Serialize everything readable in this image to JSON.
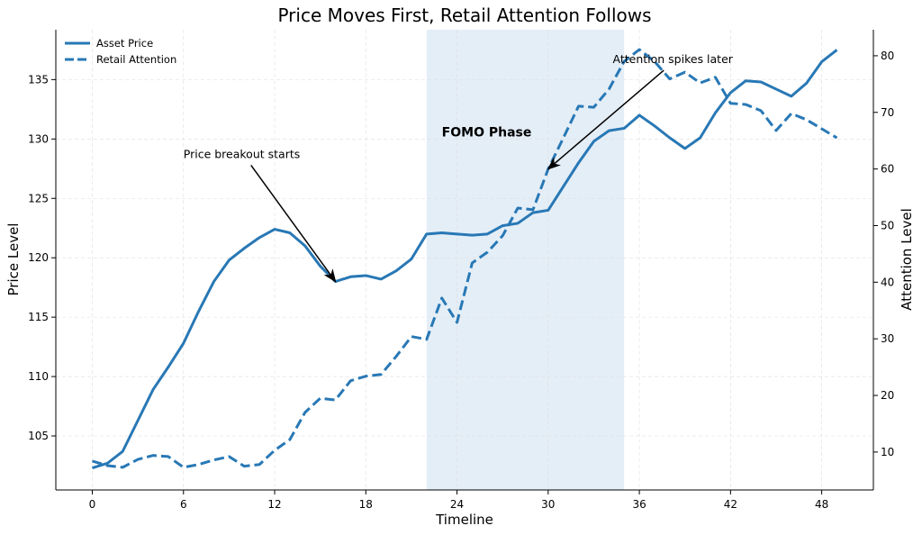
{
  "chart_data": {
    "type": "line",
    "title": "Price Moves First, Retail Attention Follows",
    "xlabel": "Timeline",
    "ylabel_left": "Price Level",
    "ylabel_right": "Attention Level",
    "xlim": [
      -2.4,
      51.4
    ],
    "ylim_left": [
      100.45,
      139.2
    ],
    "ylim_right": [
      3.3,
      84.6
    ],
    "x_ticks": [
      0,
      6,
      12,
      18,
      24,
      30,
      36,
      42,
      48
    ],
    "y_ticks_left": [
      105,
      110,
      115,
      120,
      125,
      130,
      135
    ],
    "y_ticks_right": [
      10,
      20,
      30,
      40,
      50,
      60,
      70,
      80
    ],
    "grid": true,
    "legend_position": "top-left",
    "color": "#2878b5",
    "shaded_region": {
      "x": [
        22,
        35
      ],
      "color": "#e4eef7",
      "label": "FOMO Phase",
      "label_pos": [
        23,
        130.6
      ]
    },
    "x": [
      0,
      1,
      2,
      3,
      4,
      5,
      6,
      7,
      8,
      9,
      10,
      11,
      12,
      13,
      14,
      15,
      16,
      17,
      18,
      19,
      20,
      21,
      22,
      23,
      24,
      25,
      26,
      27,
      28,
      29,
      30,
      31,
      32,
      33,
      34,
      35,
      36,
      37,
      38,
      39,
      40,
      41,
      42,
      43,
      44,
      45,
      46,
      47,
      48,
      49
    ],
    "series": [
      {
        "name": "Asset Price",
        "axis": "left",
        "style": "solid",
        "values": [
          102.3,
          102.7,
          103.7,
          106.3,
          108.9,
          110.8,
          112.8,
          115.5,
          118.0,
          119.8,
          120.8,
          121.7,
          122.4,
          122.1,
          121.0,
          119.3,
          118.0,
          118.4,
          118.5,
          118.2,
          118.9,
          119.9,
          122.0,
          122.1,
          122.0,
          121.9,
          122.0,
          122.7,
          122.9,
          123.8,
          124.0,
          126.0,
          128.0,
          129.8,
          130.7,
          130.9,
          132.0,
          131.1,
          130.1,
          129.2,
          130.1,
          132.2,
          133.9,
          134.9,
          134.8,
          134.2,
          133.6,
          134.7,
          136.5,
          137.5
        ]
      },
      {
        "name": "Retail Attention",
        "axis": "right",
        "style": "dashed",
        "values": [
          8.4,
          7.6,
          7.3,
          8.7,
          9.4,
          9.2,
          7.3,
          7.8,
          8.6,
          9.2,
          7.5,
          7.8,
          10.3,
          12.2,
          17.0,
          19.5,
          19.2,
          22.6,
          23.4,
          23.7,
          26.9,
          30.4,
          29.9,
          37.2,
          32.9,
          43.4,
          45.3,
          48.2,
          53.1,
          52.8,
          60.0,
          65.5,
          71.1,
          70.9,
          74.1,
          79.0,
          81.1,
          79.0,
          75.9,
          77.1,
          75.2,
          76.2,
          71.6,
          71.4,
          70.3,
          66.8,
          69.8,
          68.7,
          67.1,
          65.5
        ]
      }
    ],
    "annotations": [
      {
        "text": "Price breakout starts",
        "axis": "left",
        "text_pos": [
          6,
          128.4
        ],
        "arrow_to": [
          16,
          118.0
        ]
      },
      {
        "text": "Attention spikes later",
        "axis": "right",
        "text_pos": [
          38.2,
          78.7
        ],
        "arrow_to": [
          30,
          60.0
        ]
      }
    ]
  }
}
